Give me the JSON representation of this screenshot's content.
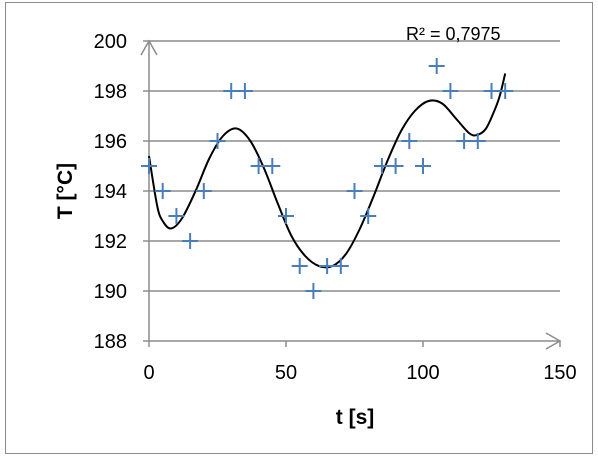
{
  "chart_data": {
    "type": "scatter",
    "xlabel": "t [s]",
    "ylabel": "T [°C]",
    "xlim": [
      0,
      150
    ],
    "ylim": [
      188,
      200
    ],
    "x_ticks": [
      "0",
      "50",
      "100",
      "150"
    ],
    "y_ticks": [
      "188",
      "190",
      "192",
      "194",
      "196",
      "198",
      "200"
    ],
    "grid": "horizontal",
    "annotation": "R² = 0,7975",
    "marker": "plus",
    "colors": {
      "points": "#4a7ebb",
      "trendline": "#000000",
      "gridlines": "#8c8c8c",
      "axes": "#8c8c8c"
    },
    "points": [
      {
        "x": 0,
        "y": 195
      },
      {
        "x": 5,
        "y": 194
      },
      {
        "x": 10,
        "y": 193
      },
      {
        "x": 15,
        "y": 192
      },
      {
        "x": 20,
        "y": 194
      },
      {
        "x": 25,
        "y": 196
      },
      {
        "x": 30,
        "y": 198
      },
      {
        "x": 35,
        "y": 198
      },
      {
        "x": 40,
        "y": 195
      },
      {
        "x": 45,
        "y": 195
      },
      {
        "x": 50,
        "y": 193
      },
      {
        "x": 55,
        "y": 191
      },
      {
        "x": 60,
        "y": 190
      },
      {
        "x": 65,
        "y": 191
      },
      {
        "x": 70,
        "y": 191
      },
      {
        "x": 75,
        "y": 194
      },
      {
        "x": 80,
        "y": 193
      },
      {
        "x": 85,
        "y": 195
      },
      {
        "x": 90,
        "y": 195
      },
      {
        "x": 95,
        "y": 196
      },
      {
        "x": 100,
        "y": 195
      },
      {
        "x": 105,
        "y": 199
      },
      {
        "x": 110,
        "y": 198
      },
      {
        "x": 115,
        "y": 196
      },
      {
        "x": 120,
        "y": 196
      },
      {
        "x": 125,
        "y": 198
      },
      {
        "x": 130,
        "y": 198
      }
    ],
    "trendline": [
      {
        "x": 0,
        "y": 195.4
      },
      {
        "x": 3,
        "y": 193.4
      },
      {
        "x": 5,
        "y": 192.8
      },
      {
        "x": 8,
        "y": 192.5
      },
      {
        "x": 12,
        "y": 192.9
      },
      {
        "x": 17,
        "y": 194.0
      },
      {
        "x": 22,
        "y": 195.3
      },
      {
        "x": 27,
        "y": 196.2
      },
      {
        "x": 32,
        "y": 196.5
      },
      {
        "x": 37,
        "y": 196.0
      },
      {
        "x": 42,
        "y": 194.9
      },
      {
        "x": 47,
        "y": 193.5
      },
      {
        "x": 52,
        "y": 192.2
      },
      {
        "x": 57,
        "y": 191.4
      },
      {
        "x": 62,
        "y": 191.0
      },
      {
        "x": 67,
        "y": 191.0
      },
      {
        "x": 72,
        "y": 191.5
      },
      {
        "x": 77,
        "y": 192.5
      },
      {
        "x": 82,
        "y": 193.8
      },
      {
        "x": 87,
        "y": 195.2
      },
      {
        "x": 92,
        "y": 196.4
      },
      {
        "x": 97,
        "y": 197.2
      },
      {
        "x": 102,
        "y": 197.6
      },
      {
        "x": 107,
        "y": 197.5
      },
      {
        "x": 112,
        "y": 196.9
      },
      {
        "x": 117,
        "y": 196.3
      },
      {
        "x": 120,
        "y": 196.25
      },
      {
        "x": 123,
        "y": 196.5
      },
      {
        "x": 126,
        "y": 197.2
      },
      {
        "x": 128,
        "y": 197.8
      },
      {
        "x": 130,
        "y": 198.7
      }
    ]
  }
}
